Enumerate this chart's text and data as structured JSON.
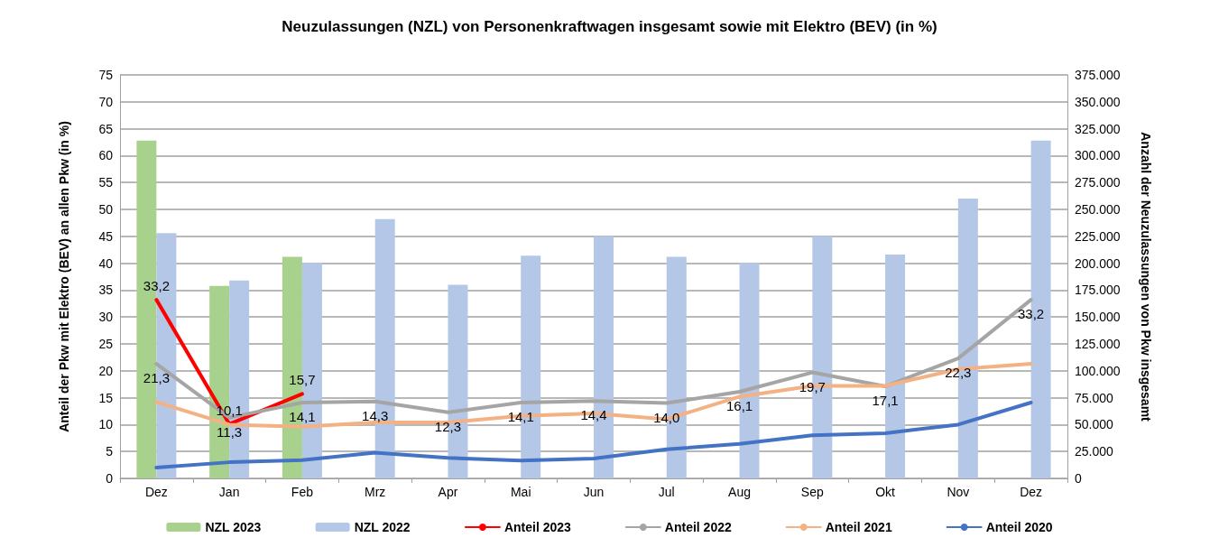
{
  "chart_data": {
    "type": "bar",
    "title": "Neuzulassungen (NZL) von Personenkraftwagen insgesamt sowie mit Elektro (BEV) (in %)",
    "ylabel": "Anteil der Pkw mit Elektro (BEV) an allen Pkw (in %)",
    "y2label": "Anzahl der Neuzulassungen von Pkw insgesamt",
    "categories": [
      "Dez",
      "Jan",
      "Feb",
      "Mrz",
      "Apr",
      "Mai",
      "Jun",
      "Jul",
      "Aug",
      "Sep",
      "Okt",
      "Nov",
      "Dez"
    ],
    "series": [
      {
        "name": "NZL 2023",
        "axis": "y2",
        "color": "#a9d18e",
        "values": [
          314000,
          179000,
          206000,
          null,
          null,
          null,
          null,
          null,
          null,
          null,
          null,
          null,
          null
        ]
      },
      {
        "name": "NZL 2022",
        "axis": "y2",
        "color": "#b4c7e7",
        "values": [
          228000,
          184000,
          200000,
          241000,
          180000,
          207000,
          225000,
          206000,
          200000,
          225000,
          208000,
          260000,
          314000
        ]
      },
      {
        "name": "Anteil 2023",
        "type": "line",
        "color": "#ff0000",
        "values": [
          33.2,
          10.1,
          15.7,
          null,
          null,
          null,
          null,
          null,
          null,
          null,
          null,
          null,
          null
        ],
        "value_labels": [
          "33,2",
          "10,1",
          "15,7",
          null,
          null,
          null,
          null,
          null,
          null,
          null,
          null,
          null,
          null
        ]
      },
      {
        "name": "Anteil 2022",
        "type": "line",
        "color": "#a5a5a5",
        "values": [
          21.3,
          11.3,
          14.1,
          14.3,
          12.3,
          14.1,
          14.4,
          14.0,
          16.1,
          19.7,
          17.1,
          22.3,
          33.2
        ],
        "value_labels": [
          "21,3",
          "11,3",
          "14,1",
          "14,3",
          "12,3",
          "14,1",
          "14,4",
          "14,0",
          "16,1",
          "19,7",
          "17,1",
          "22,3",
          "33,2"
        ]
      },
      {
        "name": "Anteil 2021",
        "type": "line",
        "color": "#f4b183",
        "values": [
          14.2,
          10.0,
          9.6,
          10.4,
          10.4,
          11.6,
          12.1,
          11.0,
          15.2,
          17.2,
          17.2,
          20.3,
          21.3
        ]
      },
      {
        "name": "Anteil 2020",
        "type": "line",
        "color": "#4472c4",
        "values": [
          2.0,
          3.0,
          3.4,
          4.8,
          3.8,
          3.3,
          3.7,
          5.4,
          6.4,
          8.0,
          8.4,
          10.0,
          14.1
        ]
      }
    ],
    "ylim": [
      0,
      75
    ],
    "yticks": [
      0,
      5,
      10,
      15,
      20,
      25,
      30,
      35,
      40,
      45,
      50,
      55,
      60,
      65,
      70,
      75
    ],
    "y2lim": [
      0,
      375000
    ],
    "y2ticks": [
      0,
      {
        "value": 25000,
        "label": "25.000"
      },
      {
        "value": 50000,
        "label": "50.000"
      },
      {
        "value": 75000,
        "label": "75.000"
      },
      {
        "value": 100000,
        "label": "100.000"
      },
      {
        "value": 125000,
        "label": "125.000"
      },
      {
        "value": 150000,
        "label": "150.000"
      },
      {
        "value": 175000,
        "label": "175.000"
      },
      {
        "value": 200000,
        "label": "200.000"
      },
      {
        "value": 225000,
        "label": "225.000"
      },
      {
        "value": 250000,
        "label": "250.000"
      },
      {
        "value": 275000,
        "label": "275.000"
      },
      {
        "value": 300000,
        "label": "300.000"
      },
      {
        "value": 325000,
        "label": "325.000"
      },
      {
        "value": 350000,
        "label": "350.000"
      },
      {
        "value": 375000,
        "label": "375.000"
      }
    ],
    "grid": "y",
    "legend": "bottom",
    "marker": "none",
    "line_style": "solid"
  }
}
